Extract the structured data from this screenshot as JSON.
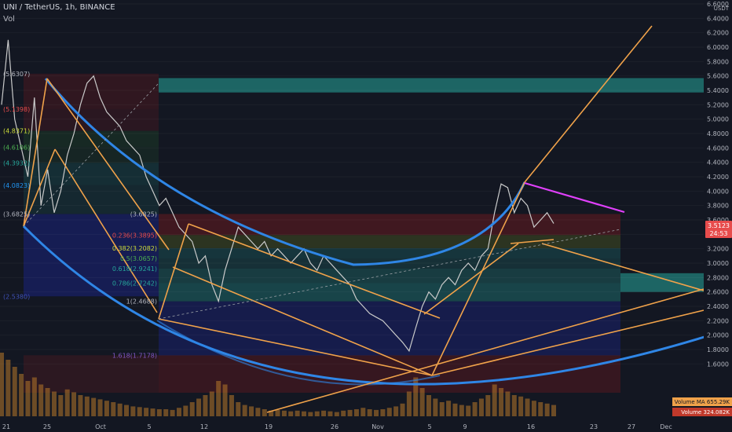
{
  "header": {
    "title": "UNI / TetherUS, 1h, BINANCE",
    "indicator": "Vol"
  },
  "colors": {
    "background": "#131722",
    "price": "#c9caca",
    "blue": "#2f86e6",
    "orange": "#f0a24a",
    "magenta": "#e040fb",
    "green_zone": "#26a69a",
    "red_zone": "#b71c1c",
    "navy_zone": "#1a237e",
    "price_tag": "#e74c4c",
    "volume": "#b8782a"
  },
  "chart_data": {
    "type": "line",
    "title": "UNI / TetherUS, 1h, BINANCE",
    "xlabel": "",
    "ylabel": "USDT",
    "ylim": [
      1.2,
      6.6
    ],
    "yticks": [
      "6.6000",
      "6.4000",
      "6.2000",
      "6.0000",
      "5.8000",
      "5.6000",
      "5.4000",
      "5.2000",
      "5.0000",
      "4.8000",
      "4.6000",
      "4.4000",
      "4.2000",
      "4.0000",
      "3.8000",
      "3.6000",
      "3.4000",
      "3.2000",
      "3.0000",
      "2.8000",
      "2.6000",
      "2.4000",
      "2.2000",
      "2.0000",
      "1.8000",
      "1.6000"
    ],
    "xticks": [
      "21",
      "25",
      "Oct",
      "5",
      "12",
      "19",
      "26",
      "Nov",
      "5",
      "9",
      "16",
      "23",
      "27",
      "Dec"
    ],
    "price_series": {
      "name": "UNI/USDT",
      "points": [
        [
          0,
          5.2
        ],
        [
          1,
          6.1
        ],
        [
          2,
          5.0
        ],
        [
          3,
          4.6
        ],
        [
          4,
          4.2
        ],
        [
          5,
          5.3
        ],
        [
          6,
          3.8
        ],
        [
          7,
          4.3
        ],
        [
          8,
          3.7
        ],
        [
          9,
          4.0
        ],
        [
          10,
          4.5
        ],
        [
          11,
          4.8
        ],
        [
          12,
          5.2
        ],
        [
          13,
          5.5
        ],
        [
          14,
          5.6
        ],
        [
          15,
          5.3
        ],
        [
          16,
          5.1
        ],
        [
          17,
          5.0
        ],
        [
          18,
          4.9
        ],
        [
          19,
          4.7
        ],
        [
          20,
          4.6
        ],
        [
          21,
          4.5
        ],
        [
          22,
          4.2
        ],
        [
          23,
          4.0
        ],
        [
          24,
          3.8
        ],
        [
          25,
          3.9
        ],
        [
          26,
          3.7
        ],
        [
          27,
          3.5
        ],
        [
          28,
          3.4
        ],
        [
          29,
          3.3
        ],
        [
          30,
          3.0
        ],
        [
          31,
          3.1
        ],
        [
          32,
          2.7
        ],
        [
          33,
          2.47
        ],
        [
          34,
          2.9
        ],
        [
          35,
          3.2
        ],
        [
          36,
          3.5
        ],
        [
          37,
          3.4
        ],
        [
          38,
          3.3
        ],
        [
          39,
          3.2
        ],
        [
          40,
          3.3
        ],
        [
          41,
          3.1
        ],
        [
          42,
          3.2
        ],
        [
          43,
          3.1
        ],
        [
          44,
          3.0
        ],
        [
          45,
          3.1
        ],
        [
          46,
          3.2
        ],
        [
          47,
          3.0
        ],
        [
          48,
          2.9
        ],
        [
          49,
          3.1
        ],
        [
          50,
          3.0
        ],
        [
          51,
          2.9
        ],
        [
          52,
          2.8
        ],
        [
          53,
          2.7
        ],
        [
          54,
          2.5
        ],
        [
          55,
          2.4
        ],
        [
          56,
          2.3
        ],
        [
          57,
          2.25
        ],
        [
          58,
          2.2
        ],
        [
          59,
          2.1
        ],
        [
          60,
          2.0
        ],
        [
          61,
          1.9
        ],
        [
          62,
          1.78
        ],
        [
          63,
          2.1
        ],
        [
          64,
          2.4
        ],
        [
          65,
          2.6
        ],
        [
          66,
          2.5
        ],
        [
          67,
          2.7
        ],
        [
          68,
          2.8
        ],
        [
          69,
          2.7
        ],
        [
          70,
          2.9
        ],
        [
          71,
          3.0
        ],
        [
          72,
          2.9
        ],
        [
          73,
          3.1
        ],
        [
          74,
          3.2
        ],
        [
          75,
          3.7
        ],
        [
          76,
          4.1
        ],
        [
          77,
          4.05
        ],
        [
          78,
          3.7
        ],
        [
          79,
          3.9
        ],
        [
          80,
          3.8
        ],
        [
          81,
          3.5
        ],
        [
          82,
          3.6
        ],
        [
          83,
          3.7
        ],
        [
          84,
          3.55
        ]
      ]
    },
    "volume": {
      "name": "Volume",
      "values": [
        0.9,
        0.8,
        0.7,
        0.6,
        0.5,
        0.55,
        0.45,
        0.4,
        0.35,
        0.3,
        0.38,
        0.34,
        0.3,
        0.28,
        0.26,
        0.24,
        0.22,
        0.2,
        0.18,
        0.16,
        0.14,
        0.13,
        0.12,
        0.11,
        0.1,
        0.1,
        0.09,
        0.12,
        0.15,
        0.2,
        0.25,
        0.3,
        0.35,
        0.5,
        0.45,
        0.3,
        0.2,
        0.16,
        0.14,
        0.12,
        0.1,
        0.08,
        0.09,
        0.08,
        0.07,
        0.08,
        0.07,
        0.06,
        0.07,
        0.08,
        0.07,
        0.06,
        0.08,
        0.09,
        0.1,
        0.12,
        0.1,
        0.09,
        0.1,
        0.12,
        0.14,
        0.18,
        0.35,
        0.55,
        0.4,
        0.3,
        0.25,
        0.2,
        0.22,
        0.18,
        0.16,
        0.15,
        0.2,
        0.25,
        0.3,
        0.45,
        0.4,
        0.35,
        0.3,
        0.28,
        0.25,
        0.22,
        0.2,
        0.18,
        0.16
      ]
    },
    "fib_levels": [
      {
        "ratio": "0",
        "price": "5.6307",
        "label": "(5.6307)"
      },
      {
        "ratio": "0.236",
        "price": "5.1398",
        "label": "(5.1398)"
      },
      {
        "ratio": "0.382",
        "price": "4.8371",
        "label": "(4.8371)"
      },
      {
        "ratio": "0.5",
        "price": "4.6106",
        "label": "(4.6106)"
      },
      {
        "ratio": "0.618",
        "price": "4.3932",
        "label": "(4.3932)"
      },
      {
        "ratio": "0.786",
        "price": "4.0823",
        "label": "(4.0823)"
      },
      {
        "ratio": "1",
        "price": "3.6825",
        "label": "(3.6825)"
      },
      {
        "ratio": "1.618",
        "price": "2.5380",
        "label": "(2.5380)"
      }
    ],
    "fib_levels_b": [
      {
        "ratio": "0",
        "price": "3.6825",
        "label": "(3.6825)"
      },
      {
        "ratio": "0.236",
        "price": "3.3895",
        "label": "0.236(3.3895)"
      },
      {
        "ratio": "0.382",
        "price": "3.2082",
        "label": "0.382(3.2082)"
      },
      {
        "ratio": "0.5",
        "price": "3.0657",
        "label": "0.5(3.0657)"
      },
      {
        "ratio": "0.618",
        "price": "2.9241",
        "label": "0.618(2.9241)"
      },
      {
        "ratio": "0.786",
        "price": "2.7242",
        "label": "0.786(2.7242)"
      },
      {
        "ratio": "1",
        "price": "2.4688",
        "label": "1(2.4688)"
      },
      {
        "ratio": "1.618",
        "price": "1.7178",
        "label": "1.618(1.7178)"
      }
    ],
    "price_tag": {
      "value": "3.5123",
      "countdown": "24:53"
    },
    "volume_ma": {
      "label": "Volume MA",
      "value": "655.29K"
    },
    "volume_last": {
      "label": "Volume",
      "value": "324.082K"
    },
    "axis_unit": "USDT"
  }
}
